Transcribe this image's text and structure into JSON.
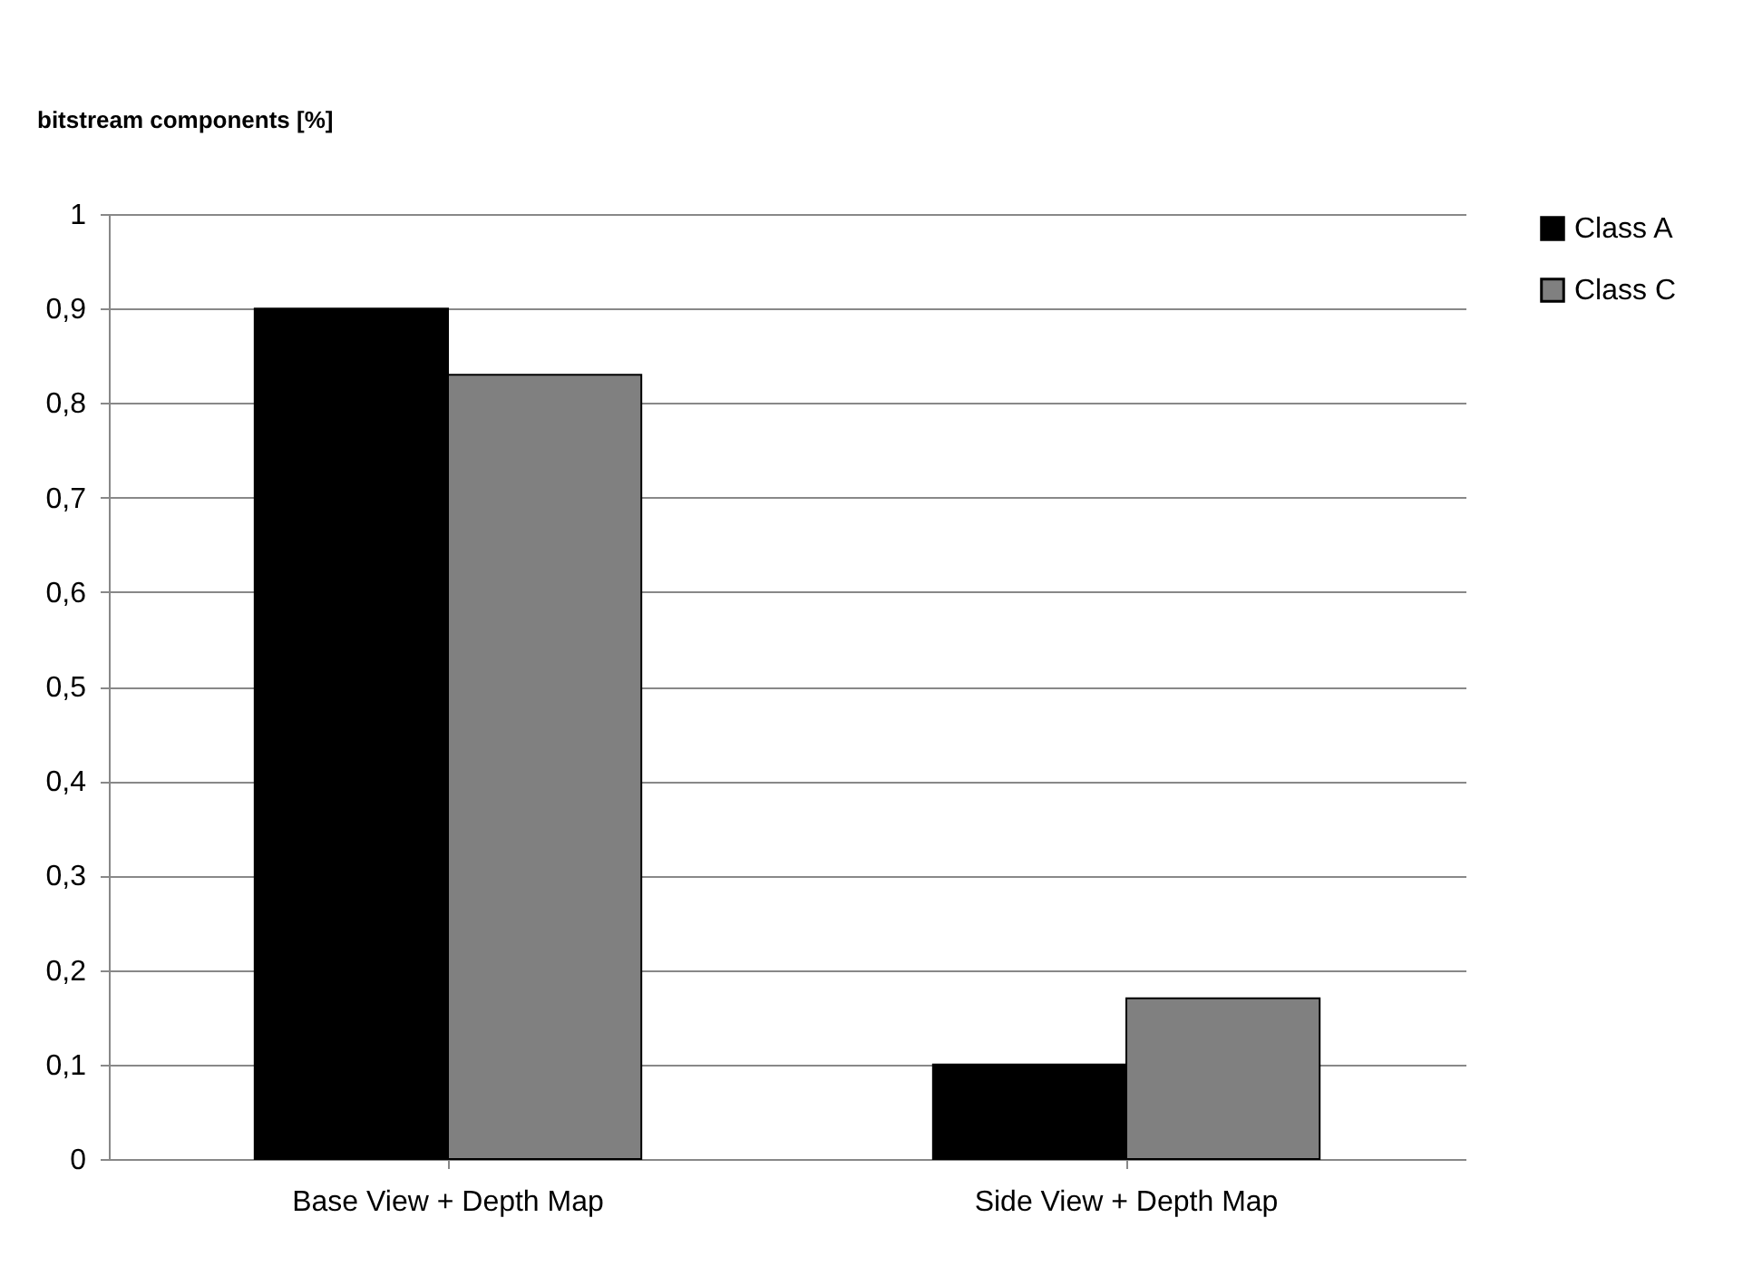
{
  "chart_data": {
    "type": "bar",
    "ylabel": "bitstream components [%]",
    "categories": [
      "Base View + Depth Map",
      "Side View + Depth Map"
    ],
    "series": [
      {
        "name": "Class A",
        "color": "#000000",
        "values": [
          0.9,
          0.1
        ]
      },
      {
        "name": "Class C",
        "color": "#808080",
        "values": [
          0.83,
          0.17
        ]
      }
    ],
    "ylim": [
      0,
      1
    ],
    "yticks": [
      {
        "value": 0,
        "label": "0"
      },
      {
        "value": 0.1,
        "label": "0,1"
      },
      {
        "value": 0.2,
        "label": "0,2"
      },
      {
        "value": 0.3,
        "label": "0,3"
      },
      {
        "value": 0.4,
        "label": "0,4"
      },
      {
        "value": 0.5,
        "label": "0,5"
      },
      {
        "value": 0.6,
        "label": "0,6"
      },
      {
        "value": 0.7,
        "label": "0,7"
      },
      {
        "value": 0.8,
        "label": "0,8"
      },
      {
        "value": 0.9,
        "label": "0,9"
      },
      {
        "value": 1,
        "label": "1"
      }
    ],
    "grid": "y",
    "legend": "right"
  }
}
